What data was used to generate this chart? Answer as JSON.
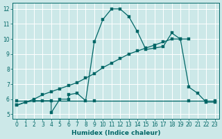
{
  "xlabel": "Humidex (Indice chaleur)",
  "bg_color": "#cce8e8",
  "grid_color": "#ffffff",
  "line_color": "#006666",
  "xlim": [
    -0.5,
    23.5
  ],
  "ylim": [
    4.7,
    12.4
  ],
  "xticks": [
    0,
    1,
    2,
    3,
    4,
    5,
    6,
    7,
    8,
    9,
    10,
    11,
    12,
    13,
    14,
    15,
    16,
    17,
    18,
    19,
    20,
    21,
    22,
    23
  ],
  "yticks": [
    5,
    6,
    7,
    8,
    9,
    10,
    11,
    12
  ],
  "wavy_x": [
    0,
    1,
    2,
    3,
    4,
    4,
    5,
    6,
    6,
    7,
    8,
    9,
    10,
    11,
    12,
    13,
    14,
    15,
    16,
    17,
    18,
    19,
    20,
    21,
    22,
    23
  ],
  "wavy_y": [
    5.6,
    5.8,
    5.9,
    5.9,
    5.9,
    5.1,
    6.0,
    6.0,
    6.3,
    6.4,
    5.9,
    9.8,
    11.3,
    12.0,
    12.0,
    11.5,
    10.5,
    9.3,
    9.4,
    9.5,
    10.4,
    10.0,
    6.8,
    6.4,
    5.8,
    5.8
  ],
  "diag_x": [
    0,
    1,
    2,
    3,
    4,
    5,
    6,
    7,
    8,
    9,
    10,
    11,
    12,
    13,
    14,
    15,
    16,
    17,
    18,
    19,
    20
  ],
  "diag_y": [
    5.6,
    5.8,
    6.0,
    6.3,
    6.5,
    6.7,
    6.9,
    7.1,
    7.4,
    7.7,
    8.1,
    8.4,
    8.7,
    9.0,
    9.2,
    9.4,
    9.6,
    9.8,
    10.0,
    10.0,
    10.0
  ],
  "flat_x": [
    0,
    9,
    20,
    22,
    23
  ],
  "flat_y": [
    5.9,
    5.9,
    5.9,
    5.9,
    5.9
  ]
}
